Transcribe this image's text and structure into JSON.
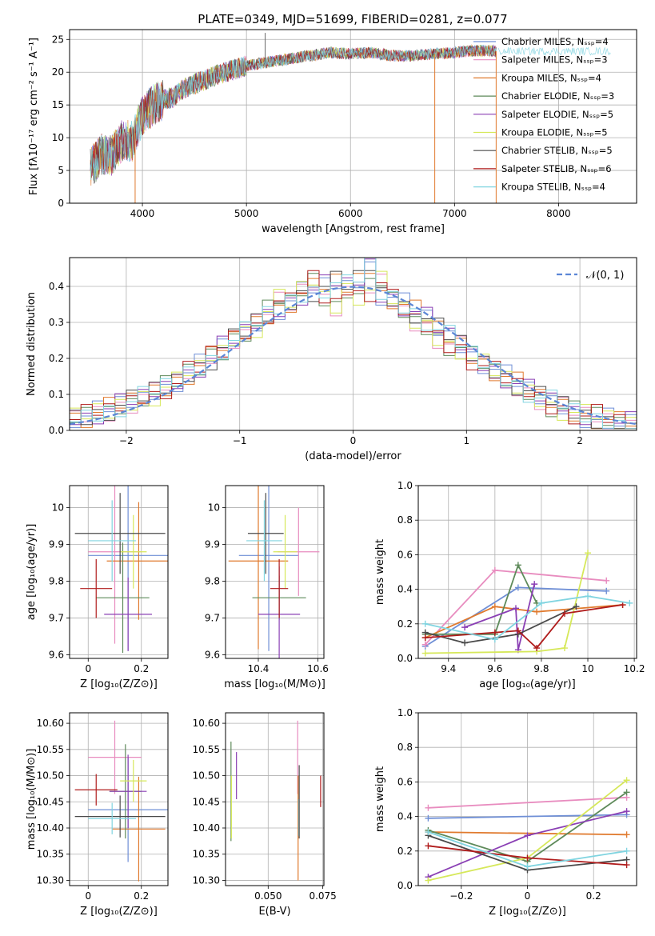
{
  "figure_title": "PLATE=0349, MJD=51699, FIBERID=0281, z=0.077",
  "colors": {
    "Chabrier MILES": "#6f8fd6",
    "Salpeter MILES": "#e88cbf",
    "Kroupa MILES": "#e07a2e",
    "Chabrier ELODIE": "#5e8a5a",
    "Salpeter ELODIE": "#8a3fb4",
    "Kroupa ELODIE": "#d6e85a",
    "Chabrier STELIB": "#4a4a4a",
    "Salpeter STELIB": "#b01c1c",
    "Kroupa STELIB": "#80d4e0",
    "normal_curve": "#5b86d6",
    "grid": "#b0b0b0"
  },
  "chart_data": [
    {
      "id": "spectrum",
      "type": "line",
      "xlabel": "wavelength [Angstrom, rest frame]",
      "ylabel": "Flux [fλ10⁻¹⁷ erg cm⁻² s⁻¹ A⁻¹]",
      "xlim": [
        3300,
        8750
      ],
      "ylim": [
        0,
        26.5
      ],
      "xticks": [
        4000,
        5000,
        6000,
        7000,
        8000
      ],
      "yticks": [
        0,
        5,
        10,
        15,
        20,
        25
      ],
      "grid": true,
      "legend_position": "right",
      "legend": [
        "Chabrier MILES, Nₛₛₚ=4",
        "Salpeter MILES, Nₛₛₚ=3",
        "Kroupa MILES, Nₛₛₚ=4",
        "Chabrier ELODIE, Nₛₛₚ=3",
        "Salpeter ELODIE, Nₛₛₚ=5",
        "Kroupa ELODIE, Nₛₛₚ=5",
        "Chabrier STELIB, Nₛₛₚ=5",
        "Salpeter STELIB, Nₛₛₚ=6",
        "Kroupa STELIB, Nₛₛₚ=4"
      ],
      "envelope": {
        "x": [
          3500,
          3600,
          3700,
          3800,
          3900,
          4000,
          4100,
          4200,
          4300,
          4400,
          4500,
          4600,
          4700,
          4800,
          5000,
          5200,
          5400,
          5600,
          5800,
          6000,
          6200,
          6400,
          6600,
          6800,
          7000,
          7200,
          7400
        ],
        "y": [
          5.2,
          7.5,
          7.2,
          9.5,
          9.5,
          13.5,
          15.0,
          15.8,
          16.2,
          17.5,
          18.2,
          18.8,
          19.5,
          20.0,
          21.0,
          21.5,
          22.0,
          22.5,
          23.0,
          22.8,
          23.0,
          22.5,
          22.5,
          22.8,
          23.0,
          23.3,
          23.2
        ]
      },
      "spikes": [
        {
          "x": 5180,
          "y": 26.0
        },
        {
          "x": 7400,
          "y": 0
        },
        {
          "x": 6810,
          "y": 0
        },
        {
          "x": 3930,
          "y": 0
        }
      ]
    },
    {
      "id": "residual_hist",
      "type": "bar",
      "xlabel": "(data-model)/error",
      "ylabel": "Normed distribution",
      "xlim": [
        -2.5,
        2.5
      ],
      "ylim": [
        0,
        0.48
      ],
      "xticks": [
        -2,
        -1,
        0,
        1,
        2
      ],
      "yticks": [
        0.0,
        0.1,
        0.2,
        0.3,
        0.4
      ],
      "grid": true,
      "legend_position": "top-right",
      "legend": [
        "𝒩(0, 1)"
      ],
      "bin_width": 0.1,
      "bins_left_from": -2.5,
      "series_bins": [
        [
          0.04,
          0.04,
          0.05,
          0.06,
          0.07,
          0.08,
          0.09,
          0.11,
          0.12,
          0.14,
          0.16,
          0.18,
          0.2,
          0.23,
          0.25,
          0.27,
          0.3,
          0.32,
          0.34,
          0.36,
          0.38,
          0.39,
          0.4,
          0.41,
          0.4,
          0.42,
          0.46,
          0.38,
          0.37,
          0.35,
          0.33,
          0.31,
          0.28,
          0.26,
          0.24,
          0.21,
          0.19,
          0.17,
          0.15,
          0.13,
          0.11,
          0.09,
          0.08,
          0.07,
          0.05,
          0.04,
          0.03,
          0.03,
          0.02,
          0.02
        ],
        [
          0.03,
          0.04,
          0.05,
          0.05,
          0.07,
          0.08,
          0.1,
          0.1,
          0.12,
          0.13,
          0.16,
          0.17,
          0.21,
          0.22,
          0.26,
          0.28,
          0.29,
          0.33,
          0.36,
          0.35,
          0.39,
          0.42,
          0.37,
          0.35,
          0.4,
          0.38,
          0.39,
          0.41,
          0.36,
          0.33,
          0.3,
          0.29,
          0.26,
          0.24,
          0.23,
          0.2,
          0.18,
          0.16,
          0.14,
          0.12,
          0.11,
          0.09,
          0.07,
          0.06,
          0.05,
          0.04,
          0.04,
          0.03,
          0.02,
          0.02
        ]
      ],
      "normal_curve": {
        "mu": 0,
        "sigma": 1
      }
    },
    {
      "id": "age_vs_Z",
      "type": "scatter",
      "xlabel": "Z [log₁₀(Z/Z⊙)]",
      "ylabel": "age  [log₁₀(age/yr)]",
      "xlim": [
        -0.07,
        0.3
      ],
      "ylim": [
        9.59,
        10.06
      ],
      "xticks": [
        0.0,
        0.2
      ],
      "yticks": [
        9.6,
        9.7,
        9.8,
        9.9,
        10.0
      ],
      "grid": true,
      "points": [
        {
          "model": "Chabrier MILES",
          "x": 0.15,
          "y": 9.87,
          "xerr": 0.15,
          "yerr": 0.26
        },
        {
          "model": "Salpeter MILES",
          "x": 0.1,
          "y": 9.88,
          "xerr": 0.1,
          "yerr": 0.25
        },
        {
          "model": "Kroupa MILES",
          "x": 0.19,
          "y": 9.855,
          "xerr": 0.12,
          "yerr": 0.16
        },
        {
          "model": "Chabrier ELODIE",
          "x": 0.13,
          "y": 9.755,
          "xerr": 0.1,
          "yerr": 0.15
        },
        {
          "model": "Salpeter ELODIE",
          "x": 0.15,
          "y": 9.71,
          "xerr": 0.09,
          "yerr": 0.1
        },
        {
          "model": "Kroupa ELODIE",
          "x": 0.17,
          "y": 9.88,
          "xerr": 0.05,
          "yerr": 0.1
        },
        {
          "model": "Chabrier STELIB",
          "x": 0.12,
          "y": 9.93,
          "xerr": 0.17,
          "yerr": 0.11
        },
        {
          "model": "Salpeter STELIB",
          "x": 0.03,
          "y": 9.78,
          "xerr": 0.06,
          "yerr": 0.08
        },
        {
          "model": "Kroupa STELIB",
          "x": 0.09,
          "y": 9.91,
          "xerr": 0.09,
          "yerr": 0.11
        }
      ]
    },
    {
      "id": "age_vs_mass",
      "type": "scatter",
      "xlabel": "mass [log₁₀(M/M⊙)]",
      "ylabel": "",
      "xlim": [
        10.29,
        10.62
      ],
      "ylim": [
        9.59,
        10.06
      ],
      "xticks": [
        10.4,
        10.6
      ],
      "yticks": [
        9.6,
        9.7,
        9.8,
        9.9,
        10.0
      ],
      "grid": true,
      "points": [
        {
          "model": "Chabrier MILES",
          "x": 10.435,
          "y": 9.87,
          "xerr": 0.1,
          "yerr": 0.26
        },
        {
          "model": "Salpeter MILES",
          "x": 10.535,
          "y": 9.88,
          "xerr": 0.07,
          "yerr": 0.12
        },
        {
          "model": "Kroupa MILES",
          "x": 10.4,
          "y": 9.855,
          "xerr": 0.1,
          "yerr": 0.24
        },
        {
          "model": "Chabrier ELODIE",
          "x": 10.47,
          "y": 9.755,
          "xerr": 0.09,
          "yerr": 0.06
        },
        {
          "model": "Salpeter ELODIE",
          "x": 10.47,
          "y": 9.71,
          "xerr": 0.07,
          "yerr": 0.13
        },
        {
          "model": "Kroupa ELODIE",
          "x": 10.49,
          "y": 9.88,
          "xerr": 0.04,
          "yerr": 0.1
        },
        {
          "model": "Chabrier STELIB",
          "x": 10.425,
          "y": 9.93,
          "xerr": 0.06,
          "yerr": 0.11
        },
        {
          "model": "Salpeter STELIB",
          "x": 10.47,
          "y": 9.78,
          "xerr": 0.03,
          "yerr": 0.08
        },
        {
          "model": "Kroupa STELIB",
          "x": 10.42,
          "y": 9.91,
          "xerr": 0.06,
          "yerr": 0.11
        }
      ]
    },
    {
      "id": "weight_vs_age",
      "type": "line",
      "xlabel": "age  [log₁₀(age/yr)]",
      "ylabel": "mass weight",
      "xlim": [
        9.27,
        10.21
      ],
      "ylim": [
        0,
        1.0
      ],
      "xticks": [
        9.4,
        9.6,
        9.8,
        10.0,
        10.2
      ],
      "yticks": [
        0.0,
        0.2,
        0.4,
        0.6,
        0.8,
        1.0
      ],
      "grid": true,
      "series": [
        {
          "model": "Chabrier MILES",
          "x": [
            9.3,
            9.7,
            10.08
          ],
          "y": [
            0.07,
            0.41,
            0.39
          ]
        },
        {
          "model": "Salpeter MILES",
          "x": [
            9.3,
            9.6,
            10.08
          ],
          "y": [
            0.08,
            0.51,
            0.45
          ]
        },
        {
          "model": "Kroupa MILES",
          "x": [
            9.3,
            9.6,
            9.78,
            10.15
          ],
          "y": [
            0.12,
            0.3,
            0.27,
            0.31
          ]
        },
        {
          "model": "Chabrier ELODIE",
          "x": [
            9.3,
            9.6,
            9.7,
            9.78
          ],
          "y": [
            0.14,
            0.14,
            0.54,
            0.32
          ]
        },
        {
          "model": "Salpeter ELODIE",
          "x": [
            9.47,
            9.69,
            9.7,
            9.77
          ],
          "y": [
            0.18,
            0.29,
            0.05,
            0.43
          ]
        },
        {
          "model": "Kroupa ELODIE",
          "x": [
            9.3,
            9.78,
            9.9,
            10.0
          ],
          "y": [
            0.03,
            0.04,
            0.06,
            0.61
          ]
        },
        {
          "model": "Chabrier STELIB",
          "x": [
            9.3,
            9.47,
            9.7,
            9.95
          ],
          "y": [
            0.15,
            0.09,
            0.14,
            0.3
          ]
        },
        {
          "model": "Salpeter STELIB",
          "x": [
            9.3,
            9.6,
            9.7,
            9.78,
            9.9,
            10.15
          ],
          "y": [
            0.12,
            0.15,
            0.16,
            0.06,
            0.26,
            0.31
          ]
        },
        {
          "model": "Kroupa STELIB",
          "x": [
            9.3,
            9.6,
            9.8,
            10.0,
            10.18
          ],
          "y": [
            0.2,
            0.11,
            0.32,
            0.36,
            0.32
          ]
        }
      ]
    },
    {
      "id": "mass_vs_Z",
      "type": "scatter",
      "xlabel": "Z [log₁₀(Z/Z⊙)]",
      "ylabel": "mass [log₁₀(M/M⊙)]",
      "xlim": [
        -0.07,
        0.3
      ],
      "ylim": [
        10.29,
        10.62
      ],
      "xticks": [
        0.0,
        0.2
      ],
      "yticks": [
        10.3,
        10.35,
        10.4,
        10.45,
        10.5,
        10.55,
        10.6
      ],
      "grid": true,
      "points": [
        {
          "model": "Chabrier MILES",
          "x": 0.15,
          "y": 10.435,
          "xerr": 0.15,
          "yerr": 0.1
        },
        {
          "model": "Salpeter MILES",
          "x": 0.1,
          "y": 10.535,
          "xerr": 0.1,
          "yerr": 0.07
        },
        {
          "model": "Kroupa MILES",
          "x": 0.19,
          "y": 10.398,
          "xerr": 0.1,
          "yerr": 0.1
        },
        {
          "model": "Chabrier ELODIE",
          "x": 0.14,
          "y": 10.47,
          "xerr": 0.06,
          "yerr": 0.09
        },
        {
          "model": "Salpeter ELODIE",
          "x": 0.15,
          "y": 10.47,
          "xerr": 0.07,
          "yerr": 0.07
        },
        {
          "model": "Kroupa ELODIE",
          "x": 0.17,
          "y": 10.49,
          "xerr": 0.05,
          "yerr": 0.04
        },
        {
          "model": "Chabrier STELIB",
          "x": 0.12,
          "y": 10.422,
          "xerr": 0.17,
          "yerr": 0.04
        },
        {
          "model": "Salpeter STELIB",
          "x": 0.03,
          "y": 10.473,
          "xerr": 0.08,
          "yerr": 0.03
        },
        {
          "model": "Kroupa STELIB",
          "x": 0.09,
          "y": 10.418,
          "xerr": 0.09,
          "yerr": 0.03
        }
      ]
    },
    {
      "id": "mass_vs_ebv",
      "type": "scatter",
      "xlabel": "E(B-V)",
      "ylabel": "",
      "xlim": [
        0.0305,
        0.0755
      ],
      "ylim": [
        10.29,
        10.62
      ],
      "xticks": [
        0.05,
        0.075
      ],
      "xticklabels": [
        "0.050",
        "0.075"
      ],
      "yticks": [
        10.3,
        10.35,
        10.4,
        10.45,
        10.5,
        10.55,
        10.6
      ],
      "grid": true,
      "points": [
        {
          "model": "Chabrier ELODIE",
          "x": 0.033,
          "y": 10.47,
          "yerr": 0.095
        },
        {
          "model": "Kroupa ELODIE",
          "x": 0.0332,
          "y": 10.44,
          "yerr": 0.06
        },
        {
          "model": "Salpeter ELODIE",
          "x": 0.0355,
          "y": 10.5,
          "yerr": 0.045
        },
        {
          "model": "Salpeter MILES",
          "x": 0.0635,
          "y": 10.535,
          "yerr": 0.07
        },
        {
          "model": "Kroupa MILES",
          "x": 0.0637,
          "y": 10.4,
          "yerr": 0.1
        },
        {
          "model": "Kroupa STELIB",
          "x": 0.064,
          "y": 10.42,
          "yerr": 0.035
        },
        {
          "model": "Chabrier STELIB",
          "x": 0.0642,
          "y": 10.45,
          "yerr": 0.07
        },
        {
          "model": "Salpeter STELIB",
          "x": 0.074,
          "y": 10.47,
          "yerr": 0.03
        }
      ]
    },
    {
      "id": "weight_vs_Z",
      "type": "line",
      "xlabel": "Z [log₁₀(Z/Z⊙)]",
      "ylabel": "mass weight",
      "xlim": [
        -0.33,
        0.33
      ],
      "ylim": [
        0,
        1.0
      ],
      "xticks": [
        -0.2,
        0.0,
        0.2
      ],
      "yticks": [
        0.0,
        0.2,
        0.4,
        0.6,
        0.8,
        1.0
      ],
      "grid": true,
      "series": [
        {
          "model": "Chabrier MILES",
          "x": [
            -0.3,
            0.3
          ],
          "y": [
            0.39,
            0.41
          ]
        },
        {
          "model": "Salpeter MILES",
          "x": [
            -0.3,
            0.3
          ],
          "y": [
            0.45,
            0.51
          ]
        },
        {
          "model": "Kroupa MILES",
          "x": [
            -0.3,
            0.3
          ],
          "y": [
            0.31,
            0.295
          ]
        },
        {
          "model": "Chabrier ELODIE",
          "x": [
            -0.3,
            0.0,
            0.3
          ],
          "y": [
            0.32,
            0.14,
            0.54
          ]
        },
        {
          "model": "Salpeter ELODIE",
          "x": [
            -0.3,
            0.0,
            0.3
          ],
          "y": [
            0.05,
            0.29,
            0.43
          ]
        },
        {
          "model": "Kroupa ELODIE",
          "x": [
            -0.3,
            0.0,
            0.3
          ],
          "y": [
            0.03,
            0.16,
            0.61
          ]
        },
        {
          "model": "Chabrier STELIB",
          "x": [
            -0.3,
            0.0,
            0.3
          ],
          "y": [
            0.29,
            0.09,
            0.15
          ]
        },
        {
          "model": "Salpeter STELIB",
          "x": [
            -0.3,
            0.0,
            0.3
          ],
          "y": [
            0.23,
            0.16,
            0.12
          ]
        },
        {
          "model": "Kroupa STELIB",
          "x": [
            -0.3,
            0.0,
            0.3
          ],
          "y": [
            0.31,
            0.11,
            0.2
          ]
        }
      ]
    }
  ]
}
